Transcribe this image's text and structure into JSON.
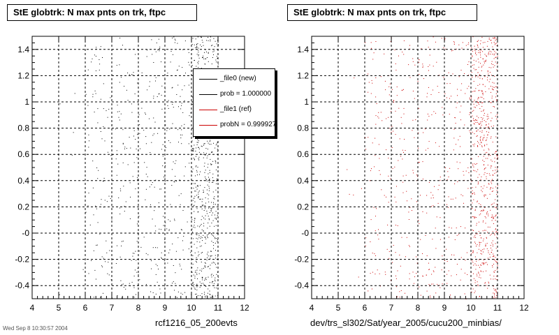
{
  "footer": {
    "date_stamp": "Wed Sep  8 10:30:57 2004"
  },
  "colors": {
    "new": "#000000",
    "ref": "#cc0000"
  },
  "legend": {
    "entries": [
      {
        "label": "_file0 (new)",
        "color": "#000000"
      },
      {
        "label": "prob = 1.000000",
        "color": "#000000"
      },
      {
        "label": "_file1 (ref)",
        "color": "#cc0000"
      },
      {
        "label": "probN = 0.999927",
        "color": "#cc0000"
      }
    ]
  },
  "chart_data": [
    {
      "type": "scatter",
      "title": "StE globtrk: N max pnts on trk, ftpc",
      "xlabel": "rcf1216_05_200evts",
      "ylabel": "",
      "xlim": [
        4,
        12
      ],
      "ylim": [
        -0.5,
        1.5
      ],
      "x_ticks": [
        4,
        5,
        6,
        7,
        8,
        9,
        10,
        11,
        12
      ],
      "y_ticks": [
        -0.4,
        -0.2,
        0,
        0.2,
        0.4,
        0.6,
        0.8,
        1,
        1.2,
        1.4
      ],
      "y_tick_labels": [
        "-0.4",
        "-0.2",
        "-0",
        "0.2",
        "0.4",
        "0.6",
        "0.8",
        "1",
        "1.2",
        "1.4"
      ],
      "grid": true,
      "marker_color": "#000000",
      "density_by_x_bin": [
        {
          "x": [
            5,
            6
          ],
          "density": 0.03
        },
        {
          "x": [
            6,
            7
          ],
          "density": 0.45
        },
        {
          "x": [
            7,
            8
          ],
          "density": 0.5
        },
        {
          "x": [
            8,
            9
          ],
          "density": 0.55
        },
        {
          "x": [
            9,
            10
          ],
          "density": 0.6
        },
        {
          "x": [
            10,
            11
          ],
          "density": 3.2
        }
      ]
    },
    {
      "type": "scatter",
      "title": "StE globtrk: N max pnts on trk, ftpc",
      "xlabel": "dev/trs_sl302/Sat/year_2005/cucu200_minbias/",
      "ylabel": "",
      "xlim": [
        4,
        12
      ],
      "ylim": [
        -0.5,
        1.5
      ],
      "x_ticks": [
        4,
        5,
        6,
        7,
        8,
        9,
        10,
        11,
        12
      ],
      "y_ticks": [
        -0.4,
        -0.2,
        0,
        0.2,
        0.4,
        0.6,
        0.8,
        1,
        1.2,
        1.4
      ],
      "y_tick_labels": [
        "-0.4",
        "-0.2",
        "-0",
        "0.2",
        "0.4",
        "0.6",
        "0.8",
        "1",
        "1.2",
        "1.4"
      ],
      "grid": true,
      "marker_color": "#cc0000",
      "density_by_x_bin": [
        {
          "x": [
            5,
            6
          ],
          "density": 0.03
        },
        {
          "x": [
            6,
            7
          ],
          "density": 0.45
        },
        {
          "x": [
            7,
            8
          ],
          "density": 0.5
        },
        {
          "x": [
            8,
            9
          ],
          "density": 0.55
        },
        {
          "x": [
            9,
            10
          ],
          "density": 0.6
        },
        {
          "x": [
            10,
            11
          ],
          "density": 3.2
        }
      ]
    }
  ]
}
